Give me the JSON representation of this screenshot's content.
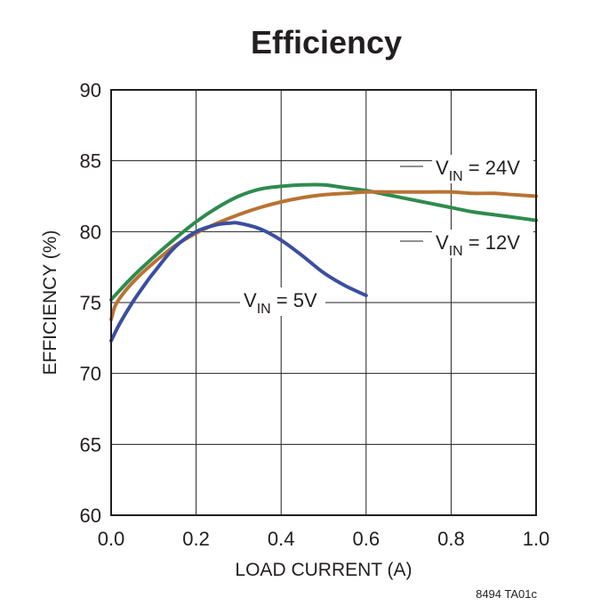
{
  "chart_data": {
    "type": "line",
    "title": "Efficiency",
    "xlabel": "LOAD CURRENT (A)",
    "ylabel": "EFFICIENCY (%)",
    "xlim": [
      0,
      1.0
    ],
    "ylim": [
      60,
      90
    ],
    "x_ticks": [
      0,
      0.2,
      0.4,
      0.6,
      0.8,
      1.0
    ],
    "x_tick_labels": [
      "0.0",
      "0.2",
      "0.4",
      "0.6",
      "0.8",
      "1.0"
    ],
    "y_ticks": [
      60,
      65,
      70,
      75,
      80,
      85,
      90
    ],
    "y_tick_labels": [
      "60",
      "65",
      "70",
      "75",
      "80",
      "85",
      "90"
    ],
    "grid": true,
    "series": [
      {
        "name": "VIN = 24V",
        "label_main": "V",
        "label_sub": "IN",
        "label_rest": " = 24V",
        "color": "#2e8b4e",
        "x": [
          0.0,
          0.05,
          0.1,
          0.15,
          0.2,
          0.25,
          0.3,
          0.35,
          0.4,
          0.45,
          0.5,
          0.55,
          0.6,
          0.65,
          0.7,
          0.75,
          0.8,
          0.85,
          0.9,
          0.95,
          1.0
        ],
        "y": [
          75.2,
          76.8,
          78.2,
          79.5,
          80.7,
          81.7,
          82.5,
          83.0,
          83.2,
          83.3,
          83.3,
          83.1,
          82.9,
          82.6,
          82.3,
          82.0,
          81.7,
          81.4,
          81.2,
          81.0,
          80.8
        ]
      },
      {
        "name": "VIN = 12V",
        "label_main": "V",
        "label_sub": "IN",
        "label_rest": " = 12V",
        "color": "#b87333",
        "x": [
          0.0,
          0.01,
          0.03,
          0.06,
          0.1,
          0.15,
          0.2,
          0.25,
          0.3,
          0.35,
          0.4,
          0.45,
          0.5,
          0.55,
          0.6,
          0.65,
          0.7,
          0.75,
          0.8,
          0.85,
          0.9,
          0.95,
          1.0
        ],
        "y": [
          73.8,
          74.8,
          75.7,
          76.7,
          77.8,
          79.0,
          79.9,
          80.6,
          81.2,
          81.7,
          82.1,
          82.4,
          82.6,
          82.7,
          82.8,
          82.8,
          82.8,
          82.8,
          82.8,
          82.7,
          82.7,
          82.6,
          82.5
        ]
      },
      {
        "name": "VIN = 5V",
        "label_main": "V",
        "label_sub": "IN",
        "label_rest": " = 5V",
        "color": "#3a4fa0",
        "x": [
          0.0,
          0.02,
          0.05,
          0.08,
          0.1,
          0.15,
          0.2,
          0.25,
          0.28,
          0.3,
          0.35,
          0.4,
          0.45,
          0.5,
          0.55,
          0.6
        ],
        "y": [
          72.3,
          73.5,
          75.0,
          76.3,
          77.1,
          78.9,
          80.0,
          80.5,
          80.6,
          80.6,
          80.2,
          79.4,
          78.3,
          77.1,
          76.2,
          75.5
        ]
      }
    ],
    "annotations": {
      "part_code": "8494 TA01c"
    }
  }
}
